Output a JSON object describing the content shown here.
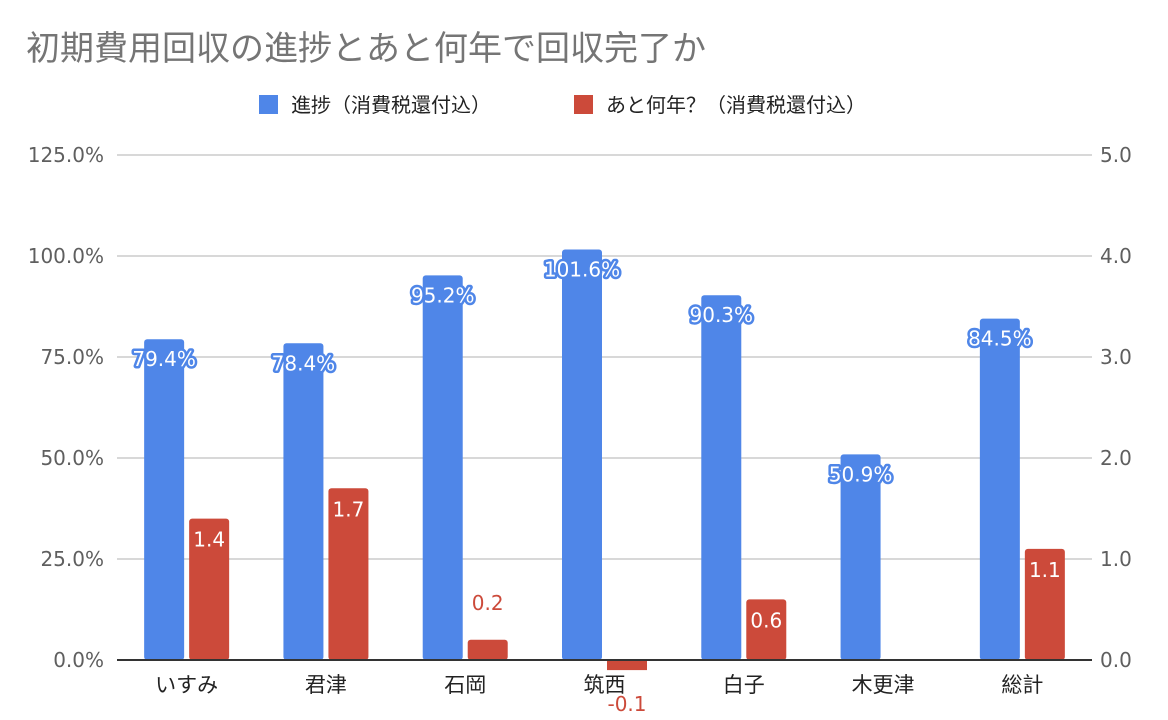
{
  "chart_data": {
    "type": "bar",
    "title": "初期費用回収の進捗とあと何年で回収完了か",
    "categories": [
      "いすみ",
      "君津",
      "石岡",
      "筑西",
      "白子",
      "木更津",
      "総計"
    ],
    "series": [
      {
        "name": "進捗（消費税還付込）",
        "axis": "left",
        "color": "#4f86e8",
        "values": [
          79.4,
          78.4,
          95.2,
          101.6,
          90.3,
          50.9,
          84.5
        ],
        "labels": [
          "79.4%",
          "78.4%",
          "95.2%",
          "101.6%",
          "90.3%",
          "50.9%",
          "84.5%"
        ]
      },
      {
        "name": "あと何年？（消費税還付込）",
        "axis": "right",
        "color": "#cc4a3a",
        "values": [
          1.4,
          1.7,
          0.2,
          -0.1,
          0.6,
          null,
          1.1
        ],
        "labels": [
          "1.4",
          "1.7",
          "0.2",
          "-0.1",
          "0.6",
          "",
          "1.1"
        ]
      }
    ],
    "y_left": {
      "ylim": [
        0,
        125
      ],
      "ticks": [
        0,
        25,
        50,
        75,
        100,
        125
      ],
      "tick_labels": [
        "0.0%",
        "25.0%",
        "50.0%",
        "75.0%",
        "100.0%",
        "125.0%"
      ]
    },
    "y_right": {
      "ylim": [
        0,
        5
      ],
      "ticks": [
        0,
        1,
        2,
        3,
        4,
        5
      ],
      "tick_labels": [
        "0.0",
        "1.0",
        "2.0",
        "3.0",
        "4.0",
        "5.0"
      ]
    },
    "grid": true,
    "legend_position": "top"
  }
}
